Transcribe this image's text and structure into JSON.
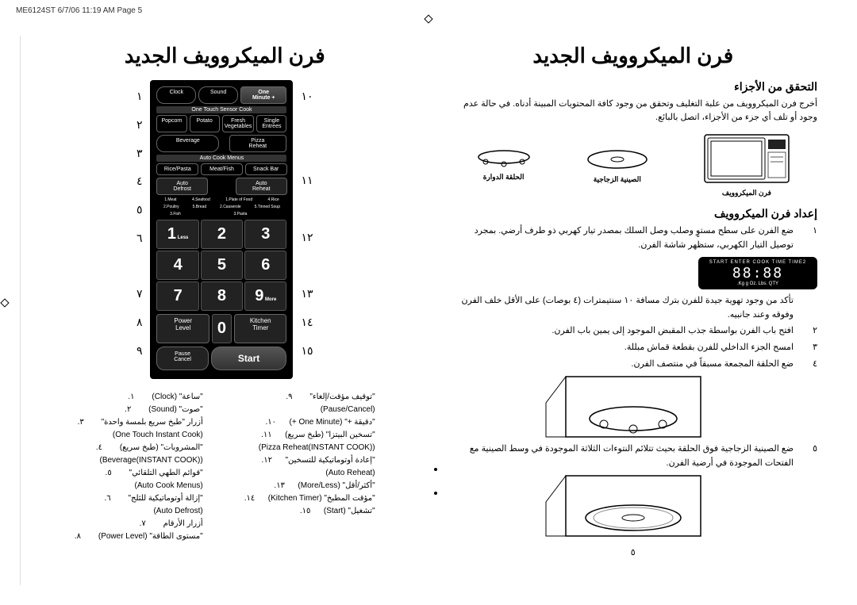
{
  "header": "ME6124ST  6/7/06  11:19 AM  Page 5",
  "title": "فرن الميكروويف الجديد",
  "rightCol": {
    "sec1_title": "التحقق من الأجزاء",
    "sec1_body": "أخرج فرن الميكروويف من علبة التغليف وتحقق من وجود كافة المحتويات المبينة أدناه. في حالة عدم وجود أو تلف أي جزء من الأجزاء، اتصل بالبائع.",
    "comp1": "فرن الميكروويف",
    "comp2": "الصينية الزجاجية",
    "comp3": "الحلقة الدوارة",
    "sec2_title": "إعداد فرن الميكروويف",
    "steps": [
      {
        "n": "١",
        "t": "ضع الفرن على سطح مستوٍ وصلب وصل السلك بمصدر تيار كهربي ذو طرف أرضي. بمجرد توصيل التيار الكهربي، ستظهر شاشة الفرن."
      },
      {
        "n": "",
        "t": "تأكد من وجود تهوية جيدة للفرن بترك مسافة ١٠ سنتيمترات (٤ بوصات) على الأقل خلف الفرن وفوقه وعند جانبيه."
      },
      {
        "n": "٢",
        "t": "افتح باب الفرن بواسطة جذب المقبض الموجود إلى يمين باب الفرن."
      },
      {
        "n": "٣",
        "t": "امسح الجزء الداخلي للفرن بقطعة قماش مبللة."
      },
      {
        "n": "٤",
        "t": "ضع الحلقة المجمعة مسبقاً في منتصف الفرن."
      },
      {
        "n": "٥",
        "t": "ضع الصينية الزجاجية فوق الحلقة بحيث تتلائم النتوءات الثلاثة الموجودة في وسط الصينية مع الفتحات الموجودة في أرضية الفرن."
      }
    ],
    "display_top": "START ENTER COOK TIME TIME2",
    "display_seg": "88:88",
    "display_bot": "Kg    g    Oz.  Lbs. QTY."
  },
  "leftCol": {
    "labelsLeft": [
      "١٠",
      "",
      "",
      "١١",
      "",
      "١٢",
      "",
      "١٣",
      "١٤",
      "١٥"
    ],
    "labelsRight": [
      "١",
      "٢",
      "٣",
      "٤",
      "٥",
      "٦",
      "",
      "٧",
      "٨",
      "٩"
    ],
    "panel": {
      "r1": [
        "Clock",
        "Sound",
        "One\nMinute +"
      ],
      "s1": "One Touch Sensor Cook",
      "r2": [
        "Popcorn",
        "Potato",
        "Fresh\nVegetables",
        "Single\nEntrees"
      ],
      "r3": [
        "Beverage",
        "Pizza\nReheat"
      ],
      "s2": "Auto Cook Menus",
      "r4": [
        "Rice/Pasta",
        "Meat/Fish",
        "Snack Bar"
      ],
      "r5": [
        "Auto\nDefrost",
        "Auto\nReheat"
      ],
      "fine1": [
        "1.Meat",
        "4.Seafood",
        "1.Plate of Food",
        "4.Rice"
      ],
      "fine2": [
        "2.Poultry",
        "5.Bread",
        "2.Casserole",
        "5.Tinned Soup"
      ],
      "fine3": [
        "3.Fish",
        "",
        "3.Pasta",
        ""
      ],
      "keys": [
        "1",
        "2",
        "3",
        "4",
        "5",
        "6",
        "7",
        "8",
        "9"
      ],
      "key_less": "Less",
      "key_more": "More",
      "r6": [
        "Power\nLevel",
        "0",
        "Kitchen\nTimer"
      ],
      "r7": [
        "Pause\nCancel",
        "Start"
      ]
    },
    "legend": {
      "colA": [
        {
          "n": ".١",
          "t": "\"ساعة\" (Clock)"
        },
        {
          "n": ".٢",
          "t": "\"صوت\" (Sound)"
        },
        {
          "n": ".٣",
          "t": "أزرار \"طبخ سريع بلمسة واحدة\""
        },
        {
          "n": "",
          "t": "(One Touch Instant Cook)"
        },
        {
          "n": ".٤",
          "t": "\"المشروبات\" (طبخ سريع)"
        },
        {
          "n": "",
          "t": "(Beverage(INSTANT COOK))"
        },
        {
          "n": ".٥",
          "t": "\"قوائم الطهي التلقائي\""
        },
        {
          "n": "",
          "t": "(Auto Cook Menus)"
        },
        {
          "n": ".٦",
          "t": "\"إزالة أوتوماتيكية للثلج\""
        },
        {
          "n": "",
          "t": "(Auto Defrost)"
        },
        {
          "n": ".٧",
          "t": "أزرار الأرقام"
        },
        {
          "n": ".٨",
          "t": "\"مستوى الطاقة\" (Power Level)"
        }
      ],
      "colB": [
        {
          "n": ".٩",
          "t": "\"توقيف مؤقت/إلغاء\""
        },
        {
          "n": "",
          "t": "(Pause/Cancel)"
        },
        {
          "n": ".١٠",
          "t": "\"دقيقة +\" (One Minute +)"
        },
        {
          "n": ".١١",
          "t": "\"تسخين البيتزا\" (طبخ سريع)"
        },
        {
          "n": "",
          "t": "(Pizza Reheat(INSTANT COOK))"
        },
        {
          "n": ".١٢",
          "t": "\"إعادة أوتوماتيكية للتسخين\""
        },
        {
          "n": "",
          "t": "(Auto Reheat)"
        },
        {
          "n": ".١٣",
          "t": "\"أكثر/أقل\" (More/Less)"
        },
        {
          "n": ".١٤",
          "t": "\"مؤقت المطبخ\" (Kitchen Timer)"
        },
        {
          "n": ".١٥",
          "t": "\"تشغيل\" (Start)"
        }
      ]
    }
  },
  "pageNum": "٥"
}
